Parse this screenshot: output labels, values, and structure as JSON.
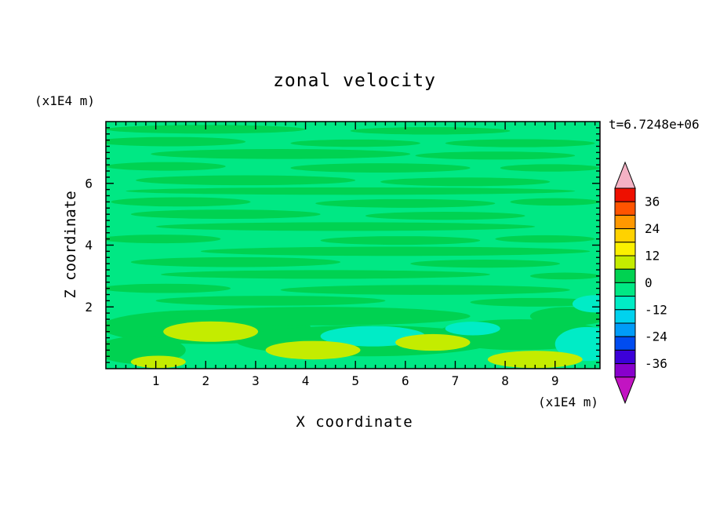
{
  "chart_data": {
    "type": "heatmap",
    "variant": "filled-contour",
    "title": "zonal velocity",
    "annotation": "t=6.7248e+06",
    "x_axis": {
      "label": "X coordinate",
      "unit_label": "(x1E4 m)",
      "range": [
        0,
        9.9
      ],
      "ticks": [
        1,
        2,
        3,
        4,
        5,
        6,
        7,
        8,
        9
      ],
      "minor_tick_step": 0.2
    },
    "z_axis": {
      "label": "Z coordinate",
      "unit_label": "(x1E4 m)",
      "range": [
        0,
        8
      ],
      "ticks": [
        2,
        4,
        6
      ],
      "minor_tick_step": 0.2
    },
    "colorbar": {
      "tick_labels": [
        "36",
        "24",
        "12",
        "0",
        "-12",
        "-24",
        "-36"
      ],
      "tick_values": [
        36,
        24,
        12,
        0,
        -12,
        -24,
        -36
      ],
      "level_max": 42,
      "level_min": -42,
      "level_step": 6,
      "over_arrow_color": "#f4b2c4",
      "under_arrow_color": "#c214c2",
      "segments_top_to_bottom": [
        {
          "band": "36to42",
          "color": "#ee1000"
        },
        {
          "band": "30to36",
          "color": "#ff5400"
        },
        {
          "band": "24to30",
          "color": "#ff9800"
        },
        {
          "band": "18to24",
          "color": "#ffd200"
        },
        {
          "band": "12to18",
          "color": "#fbf000"
        },
        {
          "band": "6to12",
          "color": "#c4ec00"
        },
        {
          "band": "0to6",
          "color": "#00d251"
        },
        {
          "band": "-6to0",
          "color": "#00e884"
        },
        {
          "band": "-12to-6",
          "color": "#00ecc6"
        },
        {
          "band": "-18to-12",
          "color": "#00d2ee"
        },
        {
          "band": "-24to-18",
          "color": "#009cf8"
        },
        {
          "band": "-30to-24",
          "color": "#004cf0"
        },
        {
          "band": "-36to-30",
          "color": "#3c00d8"
        },
        {
          "band": "-42to-36",
          "color": "#8800cc"
        }
      ]
    },
    "field": {
      "background_band": "-6to0",
      "regions": [
        {
          "x": 2.0,
          "z": 7.75,
          "rx": 2.0,
          "rz": 0.14,
          "band": "0to6"
        },
        {
          "x": 6.5,
          "z": 7.7,
          "rx": 1.6,
          "rz": 0.12,
          "band": "0to6"
        },
        {
          "x": 1.3,
          "z": 7.35,
          "rx": 1.5,
          "rz": 0.15,
          "band": "0to6"
        },
        {
          "x": 5.0,
          "z": 7.3,
          "rx": 1.3,
          "rz": 0.12,
          "band": "0to6"
        },
        {
          "x": 8.3,
          "z": 7.3,
          "rx": 1.5,
          "rz": 0.13,
          "band": "0to6"
        },
        {
          "x": 3.5,
          "z": 6.95,
          "rx": 2.6,
          "rz": 0.16,
          "band": "0to6"
        },
        {
          "x": 7.8,
          "z": 6.9,
          "rx": 1.6,
          "rz": 0.13,
          "band": "0to6"
        },
        {
          "x": 1.2,
          "z": 6.55,
          "rx": 1.2,
          "rz": 0.14,
          "band": "0to6"
        },
        {
          "x": 5.5,
          "z": 6.5,
          "rx": 1.8,
          "rz": 0.15,
          "band": "0to6"
        },
        {
          "x": 8.9,
          "z": 6.5,
          "rx": 1.0,
          "rz": 0.12,
          "band": "0to6"
        },
        {
          "x": 2.8,
          "z": 6.1,
          "rx": 2.2,
          "rz": 0.16,
          "band": "0to6"
        },
        {
          "x": 7.2,
          "z": 6.05,
          "rx": 1.7,
          "rz": 0.14,
          "band": "0to6"
        },
        {
          "x": 4.9,
          "z": 5.75,
          "rx": 4.5,
          "rz": 0.12,
          "band": "0to6"
        },
        {
          "x": 1.5,
          "z": 5.4,
          "rx": 1.4,
          "rz": 0.15,
          "band": "0to6"
        },
        {
          "x": 6.0,
          "z": 5.35,
          "rx": 1.8,
          "rz": 0.14,
          "band": "0to6"
        },
        {
          "x": 9.0,
          "z": 5.4,
          "rx": 0.9,
          "rz": 0.12,
          "band": "0to6"
        },
        {
          "x": 2.4,
          "z": 5.0,
          "rx": 1.9,
          "rz": 0.15,
          "band": "0to6"
        },
        {
          "x": 6.8,
          "z": 4.95,
          "rx": 1.6,
          "rz": 0.13,
          "band": "0to6"
        },
        {
          "x": 4.8,
          "z": 4.6,
          "rx": 3.8,
          "rz": 0.14,
          "band": "0to6"
        },
        {
          "x": 1.1,
          "z": 4.2,
          "rx": 1.2,
          "rz": 0.14,
          "band": "0to6"
        },
        {
          "x": 5.9,
          "z": 4.15,
          "rx": 1.6,
          "rz": 0.14,
          "band": "0to6"
        },
        {
          "x": 8.8,
          "z": 4.2,
          "rx": 1.0,
          "rz": 0.12,
          "band": "0to6"
        },
        {
          "x": 5.8,
          "z": 3.8,
          "rx": 3.9,
          "rz": 0.15,
          "band": "0to6"
        },
        {
          "x": 2.6,
          "z": 3.45,
          "rx": 2.1,
          "rz": 0.16,
          "band": "0to6"
        },
        {
          "x": 7.6,
          "z": 3.4,
          "rx": 1.5,
          "rz": 0.13,
          "band": "0to6"
        },
        {
          "x": 4.4,
          "z": 3.05,
          "rx": 3.3,
          "rz": 0.14,
          "band": "0to6"
        },
        {
          "x": 9.2,
          "z": 3.0,
          "rx": 0.7,
          "rz": 0.11,
          "band": "0to6"
        },
        {
          "x": 1.2,
          "z": 2.6,
          "rx": 1.3,
          "rz": 0.15,
          "band": "0to6"
        },
        {
          "x": 6.4,
          "z": 2.55,
          "rx": 2.9,
          "rz": 0.16,
          "band": "0to6"
        },
        {
          "x": 3.3,
          "z": 2.2,
          "rx": 2.3,
          "rz": 0.16,
          "band": "0to6"
        },
        {
          "x": 8.6,
          "z": 2.15,
          "rx": 1.3,
          "rz": 0.14,
          "band": "0to6"
        },
        {
          "x": 2.0,
          "z": 1.35,
          "rx": 2.1,
          "rz": 0.55,
          "band": "0to6"
        },
        {
          "x": 5.2,
          "z": 0.9,
          "rx": 2.6,
          "rz": 0.5,
          "band": "0to6"
        },
        {
          "x": 8.3,
          "z": 1.1,
          "rx": 1.7,
          "rz": 0.5,
          "band": "0to6"
        },
        {
          "x": 0.7,
          "z": 0.6,
          "rx": 0.9,
          "rz": 0.45,
          "band": "0to6"
        },
        {
          "x": 4.3,
          "z": 1.7,
          "rx": 3.0,
          "rz": 0.3,
          "band": "0to6"
        },
        {
          "x": 9.3,
          "z": 1.7,
          "rx": 0.8,
          "rz": 0.3,
          "band": "0to6"
        },
        {
          "x": 5.35,
          "z": 1.05,
          "rx": 1.05,
          "rz": 0.33,
          "band": "-12to-6"
        },
        {
          "x": 9.65,
          "z": 0.8,
          "rx": 0.65,
          "rz": 0.55,
          "band": "-12to-6"
        },
        {
          "x": 9.8,
          "z": 2.1,
          "rx": 0.45,
          "rz": 0.28,
          "band": "-12to-6"
        },
        {
          "x": 7.35,
          "z": 1.3,
          "rx": 0.55,
          "rz": 0.22,
          "band": "-12to-6"
        },
        {
          "x": 2.1,
          "z": 1.2,
          "rx": 0.95,
          "rz": 0.33,
          "band": "6to12"
        },
        {
          "x": 4.15,
          "z": 0.6,
          "rx": 0.95,
          "rz": 0.3,
          "band": "6to12"
        },
        {
          "x": 6.55,
          "z": 0.85,
          "rx": 0.75,
          "rz": 0.27,
          "band": "6to12"
        },
        {
          "x": 8.6,
          "z": 0.3,
          "rx": 0.95,
          "rz": 0.28,
          "band": "6to12"
        },
        {
          "x": 1.05,
          "z": 0.22,
          "rx": 0.55,
          "rz": 0.2,
          "band": "6to12"
        }
      ]
    }
  }
}
